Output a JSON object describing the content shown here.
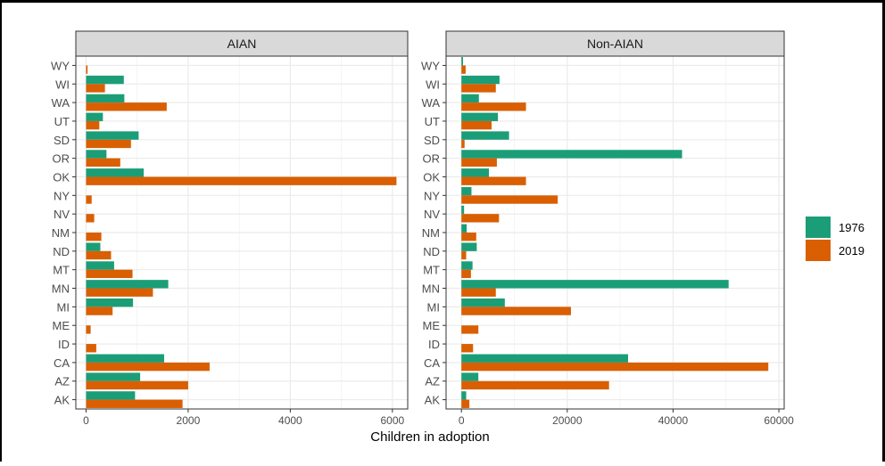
{
  "chart_data": {
    "type": "bar",
    "orientation": "horizontal",
    "xlabel": "Children in adoption",
    "ylabel": "",
    "grid": true,
    "legend_position": "right",
    "series_names": [
      "1976",
      "2019"
    ],
    "colors": {
      "1976": "#1b9e77",
      "2019": "#d95f02",
      "panel_strip": "#d9d9d9",
      "grid": "#ebebeb"
    },
    "categories": [
      "WY",
      "WI",
      "WA",
      "UT",
      "SD",
      "OR",
      "OK",
      "NY",
      "NV",
      "NM",
      "ND",
      "MT",
      "MN",
      "MI",
      "ME",
      "ID",
      "CA",
      "AZ",
      "AK"
    ],
    "panels": [
      {
        "title": "AIAN",
        "xlim": [
          -200,
          6300
        ],
        "xticks": [
          0,
          2000,
          4000,
          6000
        ],
        "series": [
          {
            "name": "1976",
            "values": [
              0,
              740,
              750,
              330,
              1030,
              400,
              1130,
              0,
              0,
              0,
              280,
              550,
              1610,
              920,
              0,
              0,
              1530,
              1060,
              960
            ]
          },
          {
            "name": "2019",
            "values": [
              30,
              370,
              1580,
              260,
              880,
              670,
              6080,
              110,
              160,
              300,
              490,
              910,
              1310,
              520,
              90,
              200,
              2420,
              2000,
              1890
            ]
          }
        ]
      },
      {
        "title": "Non-AIAN",
        "xlim": [
          -2900,
          61000
        ],
        "xticks": [
          0,
          20000,
          40000,
          60000
        ],
        "series": [
          {
            "name": "1976",
            "values": [
              300,
              7200,
              3300,
              6900,
              9000,
              41700,
              5200,
              1900,
              500,
              1000,
              2900,
              2100,
              50500,
              8200,
              0,
              0,
              31500,
              3200,
              900
            ]
          },
          {
            "name": "2019",
            "values": [
              800,
              6500,
              12200,
              5700,
              600,
              6700,
              12200,
              18200,
              7100,
              2800,
              900,
              1800,
              6500,
              20700,
              3200,
              2200,
              58000,
              27900,
              1500
            ]
          }
        ]
      }
    ]
  }
}
